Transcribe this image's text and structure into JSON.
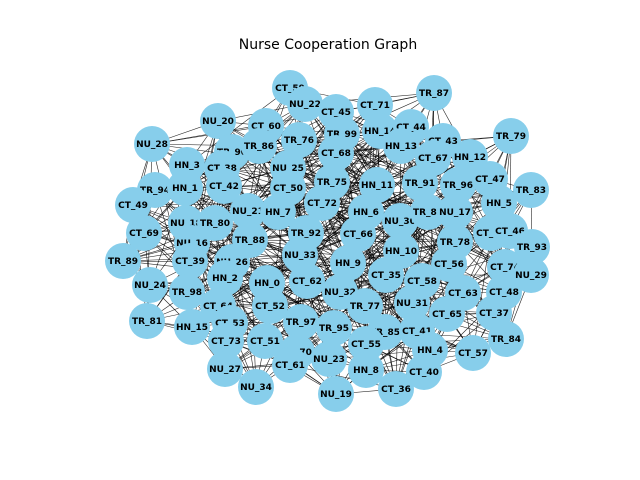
{
  "title": "Nurse Cooperation Graph",
  "node_color": "#87ceeb",
  "edge_color": "#000000",
  "chart_data": {
    "type": "network",
    "directed": false,
    "layout": "spring",
    "nodes": [
      "CT_59",
      "NU_22",
      "CT_45",
      "CT_71",
      "TR_87",
      "NU_20",
      "CT_60",
      "TR_99",
      "HN_14",
      "CT_44",
      "TR_79",
      "NU_28",
      "TR_90",
      "TR_86",
      "TR_76",
      "HN_13",
      "CT_43",
      "CT_68",
      "HN_3",
      "CT_38",
      "NU_25",
      "CT_67",
      "HN_12",
      "TR_94",
      "HN_1",
      "CT_42",
      "CT_50",
      "TR_75",
      "HN_11",
      "TR_91",
      "TR_96",
      "CT_47",
      "TR_83",
      "CT_49",
      "NU_18",
      "TR_80",
      "NU_21",
      "HN_7",
      "CT_72",
      "HN_6",
      "NU_30",
      "TR_82",
      "NU_17",
      "HN_5",
      "CT_69",
      "NU_16",
      "TR_88",
      "TR_92",
      "CT_66",
      "CT_54",
      "CT_46",
      "TR_78",
      "HN_10",
      "TR_93",
      "TR_89",
      "CT_39",
      "NU_26",
      "NU_33",
      "HN_9",
      "CT_56",
      "CT_74",
      "NU_29",
      "HN_2",
      "HN_0",
      "CT_62",
      "CT_35",
      "CT_58",
      "NU_24",
      "TR_98",
      "NU_32",
      "CT_63",
      "CT_48",
      "CT_64",
      "CT_52",
      "TR_77",
      "NU_31",
      "TR_81",
      "CT_53",
      "TR_97",
      "TR_95",
      "TR_85",
      "CT_65",
      "CT_37",
      "HN_15",
      "CT_41",
      "TR_84",
      "CT_73",
      "CT_51",
      "CT_70",
      "CT_55",
      "HN_4",
      "NU_23",
      "CT_57",
      "NU_27",
      "CT_61",
      "HN_8",
      "CT_40",
      "NU_34",
      "CT_36",
      "NU_19"
    ]
  }
}
